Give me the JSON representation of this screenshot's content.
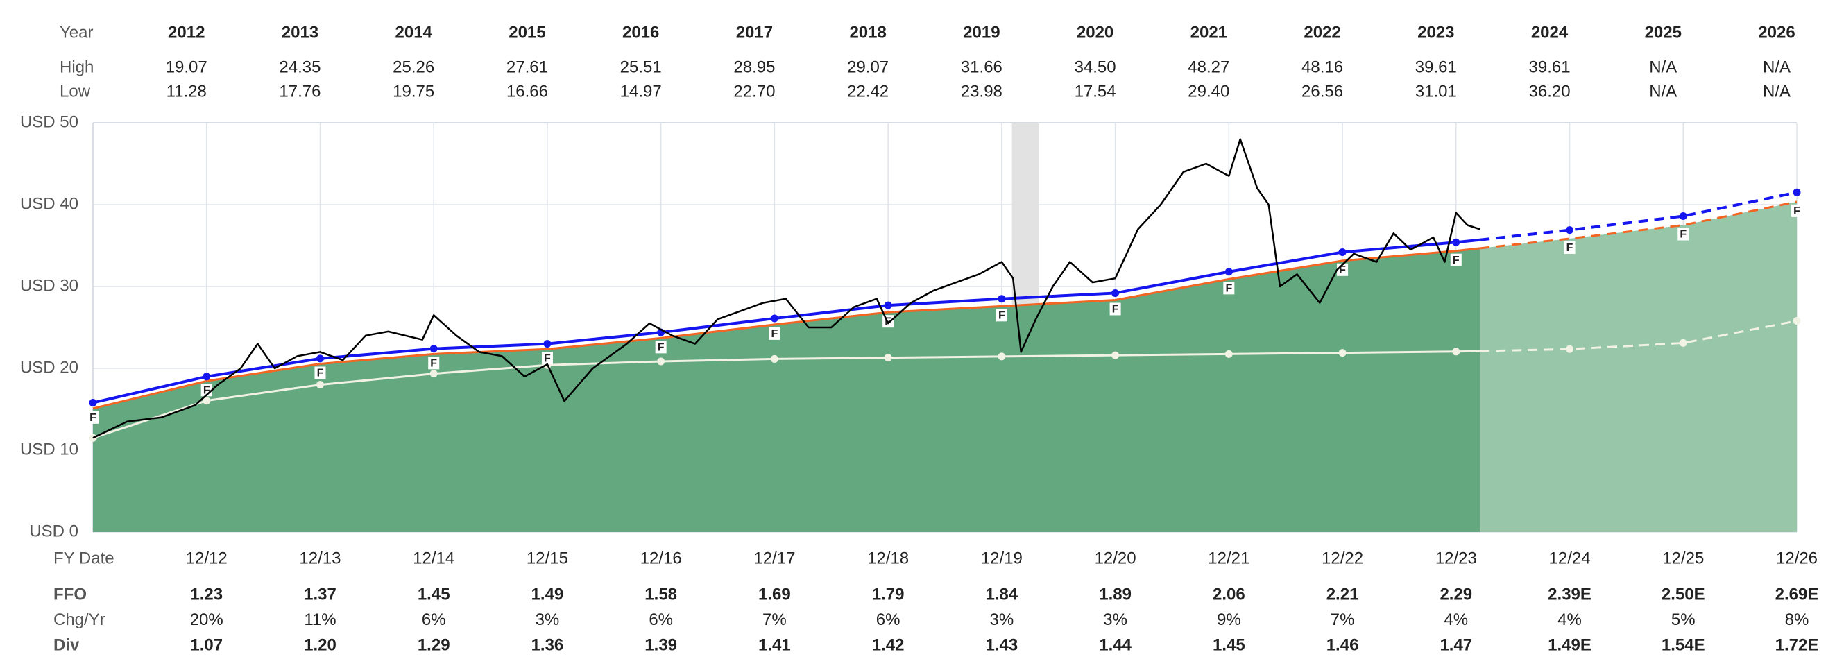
{
  "top_table": {
    "header": "Year",
    "columns": [
      "2012",
      "2013",
      "2014",
      "2015",
      "2016",
      "2017",
      "2018",
      "2019",
      "2020",
      "2021",
      "2022",
      "2023",
      "2024",
      "2025",
      "2026"
    ],
    "rows": [
      {
        "label": "High",
        "cells": [
          "19.07",
          "24.35",
          "25.26",
          "27.61",
          "25.51",
          "28.95",
          "29.07",
          "31.66",
          "34.50",
          "48.27",
          "48.16",
          "39.61",
          "39.61",
          "N/A",
          "N/A"
        ]
      },
      {
        "label": "Low",
        "cells": [
          "11.28",
          "17.76",
          "19.75",
          "16.66",
          "14.97",
          "22.70",
          "22.42",
          "23.98",
          "17.54",
          "29.40",
          "26.56",
          "31.01",
          "36.20",
          "N/A",
          "N/A"
        ]
      }
    ]
  },
  "chart_data": {
    "type": "line",
    "xlim": [
      2011,
      2026
    ],
    "ylim": [
      0,
      50
    ],
    "yticks": [
      {
        "value": 0,
        "label": "USD 0"
      },
      {
        "value": 10,
        "label": "USD 10"
      },
      {
        "value": 20,
        "label": "USD 20"
      },
      {
        "value": 30,
        "label": "USD 30"
      },
      {
        "value": 40,
        "label": "USD 40"
      },
      {
        "value": 50,
        "label": "USD 50"
      }
    ],
    "xticks": [
      {
        "value": 2012,
        "label": "12/12"
      },
      {
        "value": 2013,
        "label": "12/13"
      },
      {
        "value": 2014,
        "label": "12/14"
      },
      {
        "value": 2015,
        "label": "12/15"
      },
      {
        "value": 2016,
        "label": "12/16"
      },
      {
        "value": 2017,
        "label": "12/17"
      },
      {
        "value": 2018,
        "label": "12/18"
      },
      {
        "value": 2019,
        "label": "12/19"
      },
      {
        "value": 2020,
        "label": "12/20"
      },
      {
        "value": 2021,
        "label": "12/21"
      },
      {
        "value": 2022,
        "label": "12/22"
      },
      {
        "value": 2023,
        "label": "12/23"
      },
      {
        "value": 2024,
        "label": "12/24"
      },
      {
        "value": 2025,
        "label": "12/25"
      },
      {
        "value": 2026,
        "label": "12/26"
      }
    ],
    "grid": true,
    "shaded_x": [
      2019.09,
      2019.33
    ],
    "shaded_color": "#e2e2e2",
    "fy_marker": "F",
    "series": [
      {
        "kind": "area",
        "color": "#64a880",
        "x": [
          2011,
          2012,
          2013,
          2014,
          2015,
          2016,
          2017,
          2018,
          2019,
          2020,
          2021,
          2022,
          2023,
          2023.21
        ],
        "values": [
          15.1,
          18.45,
          20.55,
          21.75,
          22.35,
          23.7,
          25.35,
          26.85,
          27.6,
          28.35,
          30.9,
          33.15,
          34.35,
          34.67
        ]
      },
      {
        "kind": "area",
        "color": "#97c6a8",
        "x": [
          2023.21,
          2024,
          2025,
          2026
        ],
        "values": [
          34.67,
          35.85,
          37.5,
          40.35
        ]
      },
      {
        "kind": "line",
        "color": "#f2f2e4",
        "width": 3,
        "markers": "dot",
        "dashed": false,
        "x": [
          2011,
          2012,
          2013,
          2014,
          2015,
          2016,
          2017,
          2018,
          2019,
          2020,
          2021,
          2022,
          2023,
          2023.21
        ],
        "values": [
          11.5,
          16.05,
          18,
          19.35,
          20.4,
          20.85,
          21.15,
          21.3,
          21.45,
          21.6,
          21.75,
          21.9,
          22.05,
          22.11
        ]
      },
      {
        "kind": "line",
        "color": "#f2f2e4",
        "width": 3,
        "markers": "dot",
        "dashed": true,
        "x": [
          2023.21,
          2024,
          2025,
          2026
        ],
        "values": [
          22.11,
          22.35,
          23.1,
          25.8
        ]
      },
      {
        "kind": "line",
        "color": "#f26522",
        "width": 3,
        "markers": "F",
        "dashed": false,
        "x": [
          2011,
          2012,
          2013,
          2014,
          2015,
          2016,
          2017,
          2018,
          2019,
          2020,
          2021,
          2022,
          2023,
          2023.21
        ],
        "values": [
          15.1,
          18.45,
          20.55,
          21.75,
          22.35,
          23.7,
          25.35,
          26.85,
          27.6,
          28.35,
          30.9,
          33.15,
          34.35,
          34.67
        ]
      },
      {
        "kind": "line",
        "color": "#f26522",
        "width": 3,
        "markers": "F",
        "dashed": true,
        "x": [
          2023.21,
          2024,
          2025,
          2026
        ],
        "values": [
          34.67,
          35.85,
          37.5,
          40.35
        ]
      },
      {
        "kind": "line",
        "color": "#1515f0",
        "width": 4,
        "markers": "dot",
        "dashed": false,
        "x": [
          2011,
          2012,
          2013,
          2014,
          2015,
          2016,
          2017,
          2018,
          2019,
          2020,
          2021,
          2022,
          2023,
          2023.21
        ],
        "values": [
          15.8,
          19.0,
          21.2,
          22.4,
          23.0,
          24.4,
          26.1,
          27.7,
          28.5,
          29.2,
          31.8,
          34.2,
          35.4,
          35.7
        ]
      },
      {
        "kind": "line",
        "color": "#1515f0",
        "width": 4,
        "markers": "dot",
        "dashed": true,
        "x": [
          2023.21,
          2024,
          2025,
          2026
        ],
        "values": [
          35.7,
          36.9,
          38.6,
          41.5
        ]
      },
      {
        "kind": "line",
        "color": "#000000",
        "width": 2.5,
        "dashed": false,
        "x": [
          2011.0,
          2011.3,
          2011.6,
          2011.9,
          2012.1,
          2012.3,
          2012.45,
          2012.6,
          2012.8,
          2013.0,
          2013.2,
          2013.4,
          2013.6,
          2013.9,
          2014.0,
          2014.2,
          2014.4,
          2014.6,
          2014.8,
          2015.0,
          2015.15,
          2015.4,
          2015.7,
          2015.9,
          2016.1,
          2016.3,
          2016.5,
          2016.7,
          2016.9,
          2017.1,
          2017.3,
          2017.5,
          2017.7,
          2017.9,
          2018.0,
          2018.2,
          2018.4,
          2018.6,
          2018.8,
          2019.0,
          2019.1,
          2019.17,
          2019.3,
          2019.45,
          2019.6,
          2019.8,
          2020.0,
          2020.2,
          2020.4,
          2020.6,
          2020.8,
          2021.0,
          2021.1,
          2021.25,
          2021.35,
          2021.45,
          2021.6,
          2021.8,
          2021.95,
          2022.1,
          2022.3,
          2022.45,
          2022.6,
          2022.8,
          2022.9,
          2023.0,
          2023.1,
          2023.21
        ],
        "values": [
          11.5,
          13.5,
          14.0,
          15.5,
          18,
          20,
          23,
          20,
          21.5,
          22,
          21,
          24,
          24.5,
          23.5,
          26.5,
          24,
          22,
          21.5,
          19,
          20.5,
          16,
          20,
          23,
          25.5,
          24,
          23,
          26,
          27,
          28,
          28.5,
          25,
          25,
          27.5,
          28.5,
          25.5,
          28,
          29.5,
          30.5,
          31.5,
          33,
          31,
          22,
          26,
          30,
          33,
          30.5,
          31,
          37,
          40,
          44,
          45,
          43.5,
          48,
          42,
          40,
          30,
          31.5,
          28,
          32,
          34,
          33,
          36.5,
          34.5,
          36,
          33,
          39,
          37.5,
          37
        ]
      }
    ]
  },
  "bottom_table": {
    "header": "FY Date",
    "rows": [
      {
        "label": "FFO",
        "cells": [
          "1.23",
          "1.37",
          "1.45",
          "1.49",
          "1.58",
          "1.69",
          "1.79",
          "1.84",
          "1.89",
          "2.06",
          "2.21",
          "2.29",
          "2.39E",
          "2.50E",
          "2.69E"
        ]
      },
      {
        "label": "Chg/Yr",
        "cells": [
          "20%",
          "11%",
          "6%",
          "3%",
          "6%",
          "7%",
          "6%",
          "3%",
          "3%",
          "9%",
          "7%",
          "4%",
          "4%",
          "5%",
          "8%"
        ]
      },
      {
        "label": "Div",
        "cells": [
          "1.07",
          "1.20",
          "1.29",
          "1.36",
          "1.39",
          "1.41",
          "1.42",
          "1.43",
          "1.44",
          "1.45",
          "1.46",
          "1.47",
          "1.49E",
          "1.54E",
          "1.72E"
        ]
      }
    ]
  }
}
